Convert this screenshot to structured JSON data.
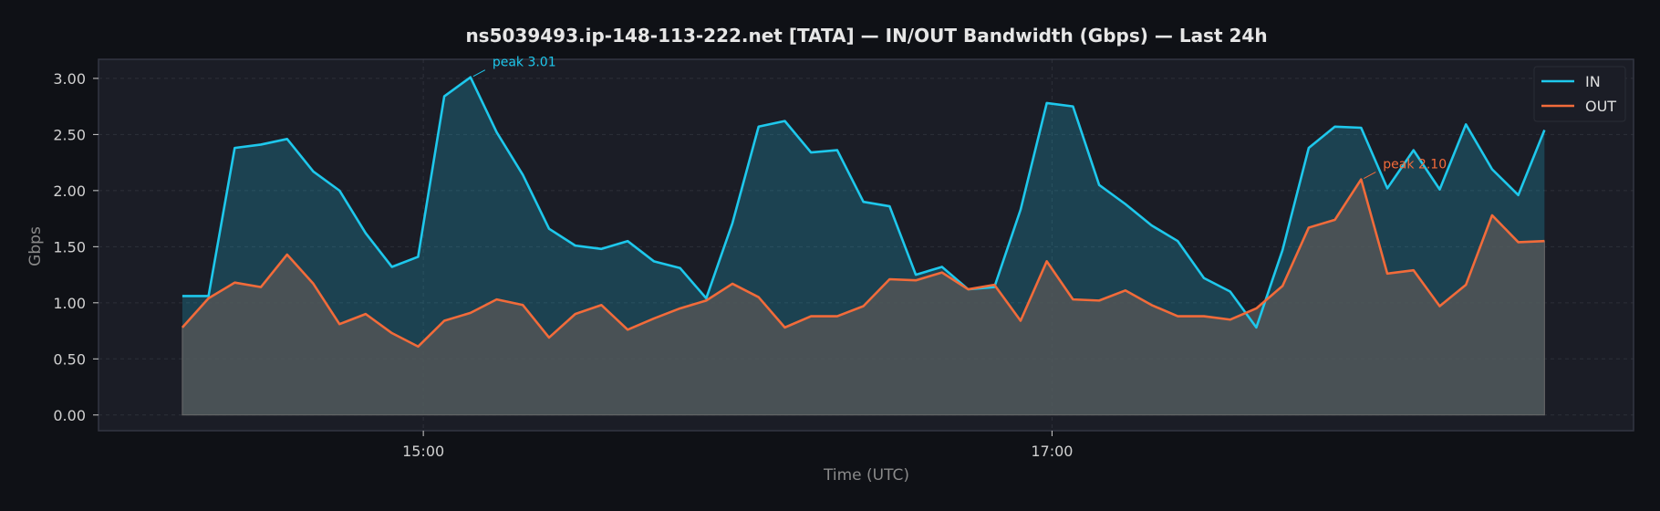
{
  "chart_data": {
    "type": "line",
    "title": "ns5039493.ip-148-113-222.net [TATA] — IN/OUT Bandwidth (Gbps) — Last 24h",
    "xlabel": "Time (UTC)",
    "ylabel": "Gbps",
    "x_start": "14:14",
    "x_step_minutes": 5,
    "x_range": [
      "13:58",
      "18:51"
    ],
    "xticks": [
      "15:00",
      "17:00"
    ],
    "ylim": [
      -0.14,
      3.17
    ],
    "yticks": [
      "0.00",
      "0.50",
      "1.00",
      "1.50",
      "2.00",
      "2.50",
      "3.00"
    ],
    "grid": true,
    "legend_position": "top-right",
    "series": [
      {
        "name": "IN",
        "color": "#1ec8ec",
        "values": [
          1.06,
          1.06,
          2.38,
          2.41,
          2.46,
          2.17,
          2.0,
          1.62,
          1.32,
          1.41,
          2.84,
          3.01,
          2.52,
          2.14,
          1.66,
          1.51,
          1.48,
          1.55,
          1.37,
          1.31,
          1.04,
          1.71,
          2.57,
          2.62,
          2.34,
          2.36,
          1.9,
          1.86,
          1.25,
          1.32,
          1.12,
          1.14,
          1.83,
          2.78,
          2.75,
          2.05,
          1.88,
          1.69,
          1.55,
          1.22,
          1.1,
          0.78,
          1.47,
          2.38,
          2.57,
          2.56,
          2.02,
          2.36,
          2.01,
          2.59,
          2.19,
          1.96,
          2.54
        ]
      },
      {
        "name": "OUT",
        "color": "#f26b3a",
        "values": [
          0.78,
          1.04,
          1.18,
          1.14,
          1.43,
          1.17,
          0.81,
          0.9,
          0.73,
          0.61,
          0.84,
          0.91,
          1.03,
          0.98,
          0.69,
          0.9,
          0.98,
          0.76,
          0.86,
          0.95,
          1.02,
          1.17,
          1.05,
          0.78,
          0.88,
          0.88,
          0.97,
          1.21,
          1.2,
          1.27,
          1.12,
          1.16,
          0.84,
          1.37,
          1.03,
          1.02,
          1.11,
          0.98,
          0.88,
          0.88,
          0.85,
          0.95,
          1.15,
          1.67,
          1.74,
          2.1,
          1.26,
          1.29,
          0.97,
          1.16,
          1.78,
          1.54,
          1.55
        ]
      }
    ],
    "annotations": [
      {
        "text": "peak 3.01",
        "series": "IN",
        "index": 11,
        "color": "#1ec8ec"
      },
      {
        "text": "peak 2.10",
        "series": "OUT",
        "index": 45,
        "color": "#f26b3a"
      }
    ],
    "colors": {
      "background": "#0f1116",
      "plot_background": "#1b1d26",
      "grid": "#3a3d46"
    }
  }
}
